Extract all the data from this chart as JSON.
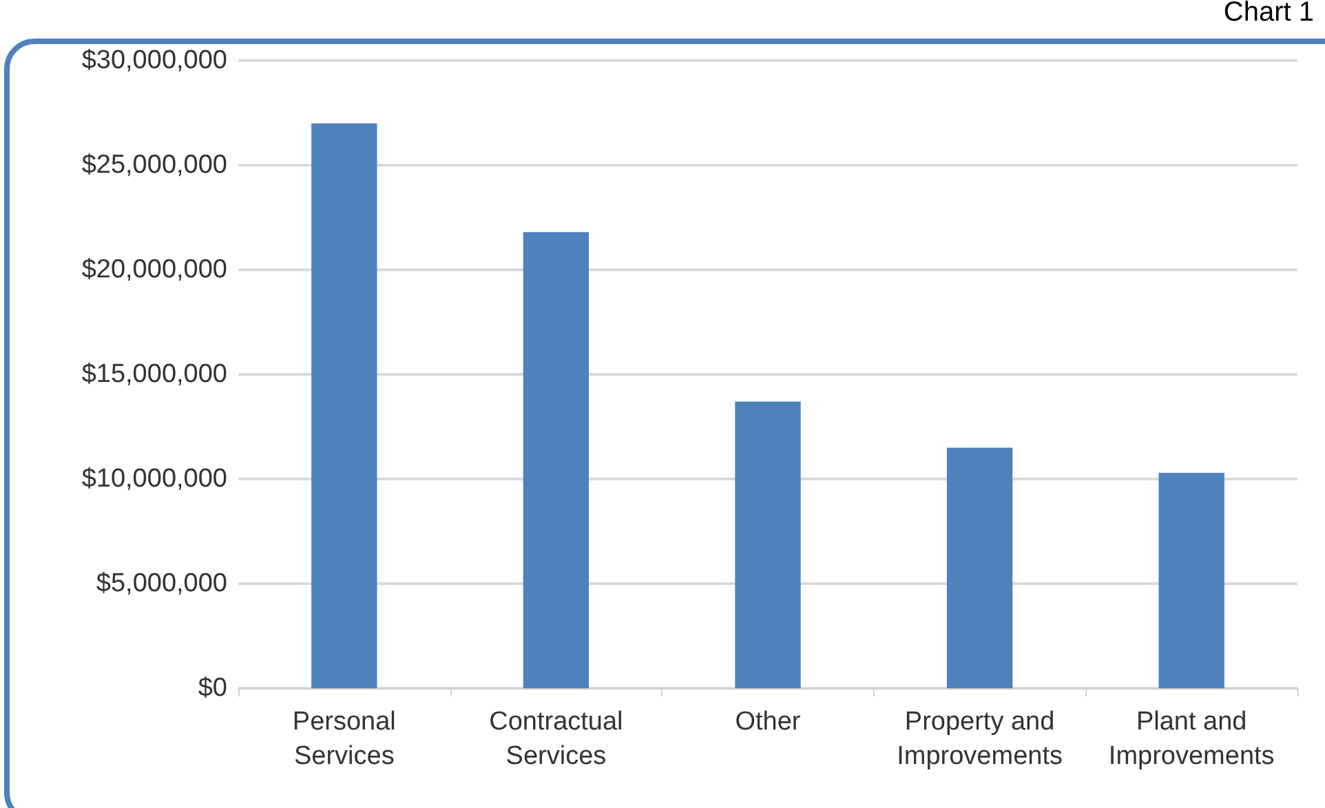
{
  "chart_data": {
    "type": "bar",
    "title": "Chart 1",
    "categories": [
      "Personal Services",
      "Contractual Services",
      "Other",
      "Property and Improvements",
      "Plant and Improvements"
    ],
    "values": [
      27000000,
      21800000,
      13700000,
      11500000,
      10300000
    ],
    "color": "#4f81bd",
    "ylim": [
      0,
      30000000
    ],
    "yticks": [
      {
        "value": 0,
        "label": "$0"
      },
      {
        "value": 5000000,
        "label": "$5,000,000"
      },
      {
        "value": 10000000,
        "label": "$10,000,000"
      },
      {
        "value": 15000000,
        "label": "$15,000,000"
      },
      {
        "value": 20000000,
        "label": "$20,000,000"
      },
      {
        "value": 25000000,
        "label": "$25,000,000"
      },
      {
        "value": 30000000,
        "label": "$30,000,000"
      }
    ],
    "grid": "y"
  }
}
